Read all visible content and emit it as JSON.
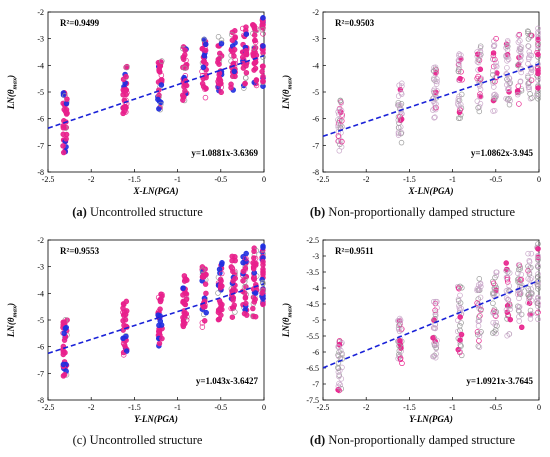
{
  "chart_data": [
    {
      "type": "scatter",
      "xlabel": "X-LN(PGA)",
      "ylabel": "LN(θmax)",
      "ylabel_main": "LN(θ",
      "ylabel_sub": "max",
      "ylabel_close": ")",
      "xlim": [
        -2.5,
        0
      ],
      "ylim": [
        -8,
        -2
      ],
      "xticks": [
        "-2.5",
        "-2",
        "-1.5",
        "-1",
        "-0.5",
        "0"
      ],
      "yticks": [
        "-8",
        "-7",
        "-6",
        "-5",
        "-4",
        "-3",
        "-2"
      ],
      "r2": "R²=0.9499",
      "equation": "y=1.0881x-3.6369",
      "fit": {
        "slope": 1.0881,
        "intercept": -3.6369
      },
      "columns": [
        {
          "x": -2.303,
          "ymin": -7.3,
          "ymax": -5.0
        },
        {
          "x": -1.609,
          "ymin": -6.0,
          "ymax": -4.0
        },
        {
          "x": -1.204,
          "ymin": -5.7,
          "ymax": -3.8
        },
        {
          "x": -0.916,
          "ymin": -5.5,
          "ymax": -3.3
        },
        {
          "x": -0.693,
          "ymin": -5.3,
          "ymax": -3.0
        },
        {
          "x": -0.511,
          "ymin": -5.2,
          "ymax": -2.9
        },
        {
          "x": -0.357,
          "ymin": -5.0,
          "ymax": -2.7
        },
        {
          "x": -0.223,
          "ymin": -5.0,
          "ymax": -2.5
        },
        {
          "x": -0.105,
          "ymin": -4.9,
          "ymax": -2.3
        },
        {
          "x": 0.0,
          "ymin": -4.9,
          "ymax": -2.2
        }
      ],
      "style": "filled",
      "caption_label": "(a)",
      "caption_text": " Uncontrolled structure",
      "caption_bold": true
    },
    {
      "type": "scatter",
      "xlabel": "X-LN(PGA)",
      "ylabel": "LN(θmax)",
      "ylabel_main": "LN(θ",
      "ylabel_sub": "max",
      "ylabel_close": ")",
      "xlim": [
        -2.5,
        0
      ],
      "ylim": [
        -8,
        -2
      ],
      "xticks": [
        "-2.5",
        "-2",
        "-1.5",
        "-1",
        "-0.5",
        "0"
      ],
      "yticks": [
        "-8",
        "-7",
        "-6",
        "-5",
        "-4",
        "-3",
        "-2"
      ],
      "r2": "R²=0.9503",
      "equation": "y=1.0862x-3.945",
      "fit": {
        "slope": 1.0862,
        "intercept": -3.945
      },
      "columns": [
        {
          "x": -2.303,
          "ymin": -7.3,
          "ymax": -5.3
        },
        {
          "x": -1.609,
          "ymin": -7.0,
          "ymax": -4.6
        },
        {
          "x": -1.204,
          "ymin": -6.0,
          "ymax": -4.0
        },
        {
          "x": -0.916,
          "ymin": -6.0,
          "ymax": -3.5
        },
        {
          "x": -0.693,
          "ymin": -5.8,
          "ymax": -3.2
        },
        {
          "x": -0.511,
          "ymin": -5.8,
          "ymax": -3.0
        },
        {
          "x": -0.357,
          "ymin": -5.5,
          "ymax": -3.0
        },
        {
          "x": -0.223,
          "ymin": -5.5,
          "ymax": -2.8
        },
        {
          "x": -0.105,
          "ymin": -5.3,
          "ymax": -2.6
        },
        {
          "x": 0.0,
          "ymin": -5.3,
          "ymax": -2.5
        }
      ],
      "style": "hollow",
      "caption_label": "(b)",
      "caption_text": " Non-proportionally damped structure",
      "caption_bold": true
    },
    {
      "type": "scatter",
      "xlabel": "Y-LN(PGA)",
      "ylabel": "LN(θmax)",
      "ylabel_main": "LN(θ",
      "ylabel_sub": "max",
      "ylabel_close": ")",
      "xlim": [
        -2.5,
        0
      ],
      "ylim": [
        -8,
        -2
      ],
      "xticks": [
        "-2.5",
        "-2",
        "-1.5",
        "-1",
        "-0.5",
        "0"
      ],
      "yticks": [
        "-8",
        "-7",
        "-6",
        "-5",
        "-4",
        "-3",
        "-2"
      ],
      "r2": "R²=0.9553",
      "equation": "y=1.043x-3.6427",
      "fit": {
        "slope": 1.043,
        "intercept": -3.6427
      },
      "columns": [
        {
          "x": -2.303,
          "ymin": -7.2,
          "ymax": -4.9
        },
        {
          "x": -1.609,
          "ymin": -6.5,
          "ymax": -4.3
        },
        {
          "x": -1.204,
          "ymin": -6.0,
          "ymax": -3.8
        },
        {
          "x": -0.916,
          "ymin": -5.3,
          "ymax": -3.3
        },
        {
          "x": -0.693,
          "ymin": -5.3,
          "ymax": -3.0
        },
        {
          "x": -0.511,
          "ymin": -5.0,
          "ymax": -2.8
        },
        {
          "x": -0.357,
          "ymin": -5.0,
          "ymax": -2.6
        },
        {
          "x": -0.223,
          "ymin": -4.9,
          "ymax": -2.5
        },
        {
          "x": -0.105,
          "ymin": -4.9,
          "ymax": -2.3
        },
        {
          "x": 0.0,
          "ymin": -4.8,
          "ymax": -2.2
        }
      ],
      "style": "filled",
      "caption_label": "(c)",
      "caption_text": " Uncontrolled structure",
      "caption_bold": false
    },
    {
      "type": "scatter",
      "xlabel": "Y-LN(PGA)",
      "ylabel": "LN(θmax)",
      "ylabel_main": "LN(θ",
      "ylabel_sub": "max",
      "ylabel_close": ")",
      "xlim": [
        -2.5,
        0
      ],
      "ylim": [
        -7.5,
        -2.5
      ],
      "xticks": [
        "-2.5",
        "-2",
        "-1.5",
        "-1",
        "-0.5",
        "0"
      ],
      "yticks": [
        "-7.5",
        "-7",
        "-6.5",
        "-6",
        "-5.5",
        "-5",
        "-4.5",
        "-4",
        "-3.5",
        "-3",
        "-2.5"
      ],
      "r2": "R²=0.9511",
      "equation": "y=1.0921x-3.7645",
      "fit": {
        "slope": 1.0921,
        "intercept": -3.7645
      },
      "columns": [
        {
          "x": -2.303,
          "ymin": -7.3,
          "ymax": -5.6
        },
        {
          "x": -1.609,
          "ymin": -6.4,
          "ymax": -4.9
        },
        {
          "x": -1.204,
          "ymin": -6.3,
          "ymax": -4.4
        },
        {
          "x": -0.916,
          "ymin": -6.2,
          "ymax": -3.9
        },
        {
          "x": -0.693,
          "ymin": -5.9,
          "ymax": -3.7
        },
        {
          "x": -0.511,
          "ymin": -5.7,
          "ymax": -3.4
        },
        {
          "x": -0.357,
          "ymin": -5.5,
          "ymax": -3.2
        },
        {
          "x": -0.223,
          "ymin": -5.3,
          "ymax": -3.0
        },
        {
          "x": -0.105,
          "ymin": -5.1,
          "ymax": -2.9
        },
        {
          "x": 0.0,
          "ymin": -5.0,
          "ymax": -2.6
        }
      ],
      "style": "hollow",
      "caption_label": "(d)",
      "caption_text": " Non-proportionally damped structure",
      "caption_bold": true
    }
  ],
  "colors": {
    "magenta": "#e8208c",
    "blue": "#1f2fe0",
    "light": "#c9a7c9",
    "grey": "#9a9a9a",
    "fit": "#1a22d8"
  }
}
